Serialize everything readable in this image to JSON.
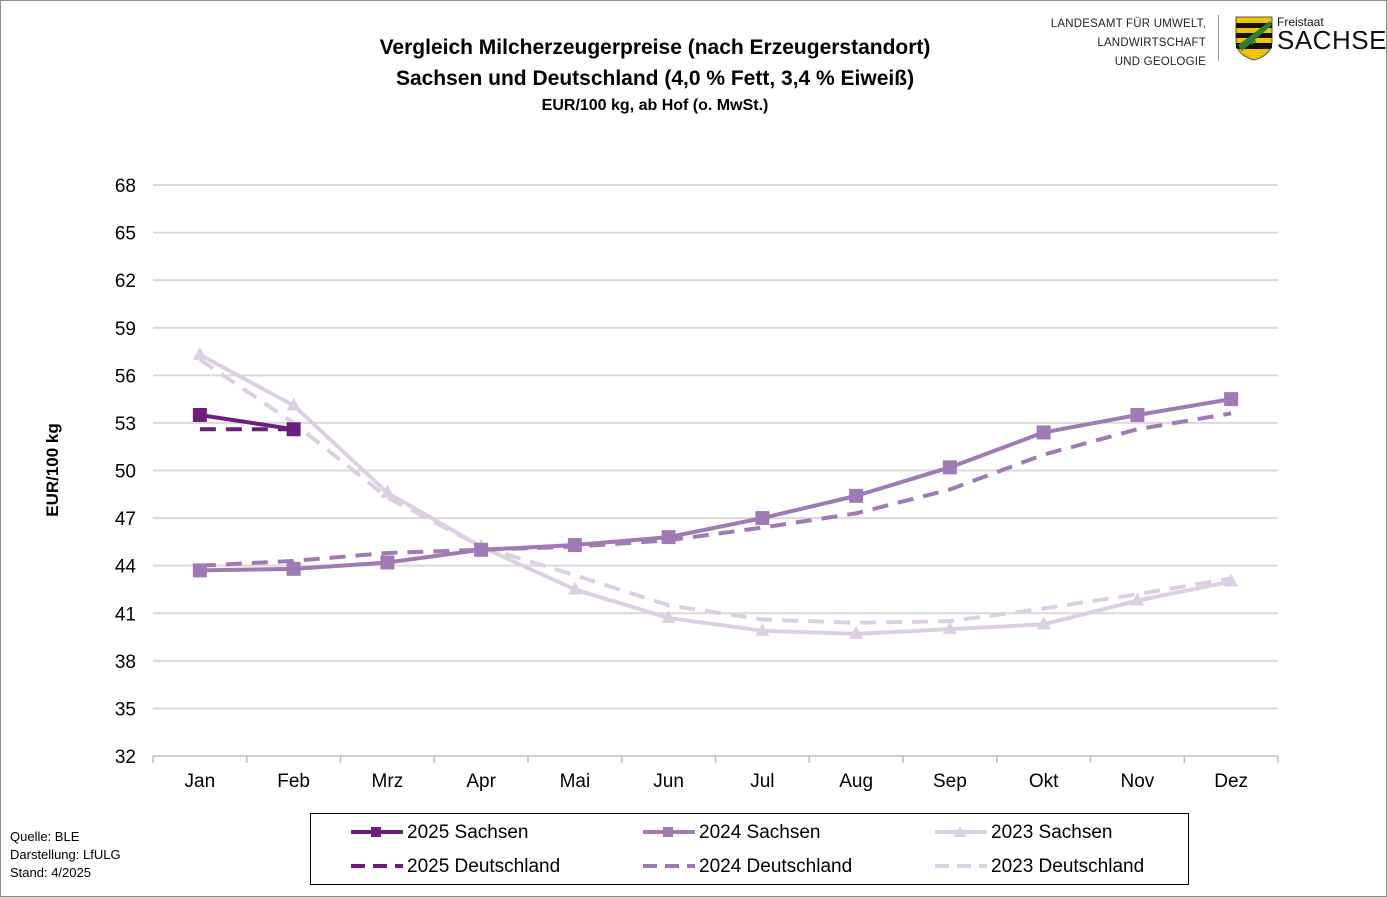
{
  "header": {
    "title_line1": "Vergleich Milcherzeugerpreise (nach Erzeugerstandort)",
    "title_line2": "Sachsen und Deutschland (4,0 % Fett, 3,4 % Eiweiß)",
    "title_line3": "EUR/100 kg, ab Hof (o. MwSt.)"
  },
  "logo": {
    "line1": "LANDESAMT FÜR UMWELT,",
    "line2": "LANDWIRTSCHAFT",
    "line3": "UND GEOLOGIE",
    "freistaat": "Freistaat",
    "sachsen": "SACHSEN",
    "shield_colors": [
      "#f2c300",
      "#111111",
      "#2e7d32"
    ]
  },
  "footer": {
    "quelle": "Quelle: BLE",
    "darstellung": "Darstellung: LfULG",
    "stand": "Stand: 4/2025"
  },
  "chart_data": {
    "type": "line",
    "title": "Vergleich Milcherzeugerpreise (nach Erzeugerstandort)",
    "subtitle": "Sachsen und Deutschland (4,0 % Fett, 3,4 % Eiweiß)",
    "unit_note": "EUR/100 kg, ab Hof (o. MwSt.)",
    "ylabel": "EUR/100 kg",
    "xlabel": "",
    "categories": [
      "Jan",
      "Feb",
      "Mrz",
      "Apr",
      "Mai",
      "Jun",
      "Jul",
      "Aug",
      "Sep",
      "Okt",
      "Nov",
      "Dez"
    ],
    "yticks": [
      32,
      35,
      38,
      41,
      44,
      47,
      50,
      53,
      56,
      59,
      62,
      65,
      68
    ],
    "ylim": [
      32,
      68
    ],
    "grid": true,
    "legend_position": "bottom",
    "series": [
      {
        "name": "2025 Sachsen",
        "color": "#6b1f7b",
        "style": "solid",
        "marker": "square",
        "values": [
          53.5,
          52.6,
          null,
          null,
          null,
          null,
          null,
          null,
          null,
          null,
          null,
          null
        ]
      },
      {
        "name": "2024 Sachsen",
        "color": "#a07ab4",
        "style": "solid",
        "marker": "square",
        "values": [
          43.7,
          43.8,
          44.2,
          45.0,
          45.3,
          45.8,
          47.0,
          48.4,
          50.2,
          52.4,
          53.5,
          54.5
        ]
      },
      {
        "name": "2023 Sachsen",
        "color": "#dccfe4",
        "style": "solid",
        "marker": "triangle",
        "values": [
          57.3,
          54.1,
          48.6,
          45.2,
          42.5,
          40.7,
          39.9,
          39.7,
          40.0,
          40.3,
          41.8,
          43.0
        ]
      },
      {
        "name": "2025 Deutschland",
        "color": "#6b1f7b",
        "style": "dashed",
        "marker": "none",
        "values": [
          52.6,
          52.6,
          null,
          null,
          null,
          null,
          null,
          null,
          null,
          null,
          null,
          null
        ]
      },
      {
        "name": "2024 Deutschland",
        "color": "#a07ab4",
        "style": "dashed",
        "marker": "none",
        "values": [
          44.0,
          44.3,
          44.8,
          45.0,
          45.2,
          45.6,
          46.4,
          47.3,
          48.8,
          51.0,
          52.6,
          53.6
        ]
      },
      {
        "name": "2023 Deutschland",
        "color": "#dccfe4",
        "style": "dashed",
        "marker": "none",
        "values": [
          57.0,
          53.0,
          48.3,
          45.2,
          43.4,
          41.5,
          40.6,
          40.4,
          40.5,
          41.3,
          42.2,
          43.2
        ]
      }
    ]
  }
}
